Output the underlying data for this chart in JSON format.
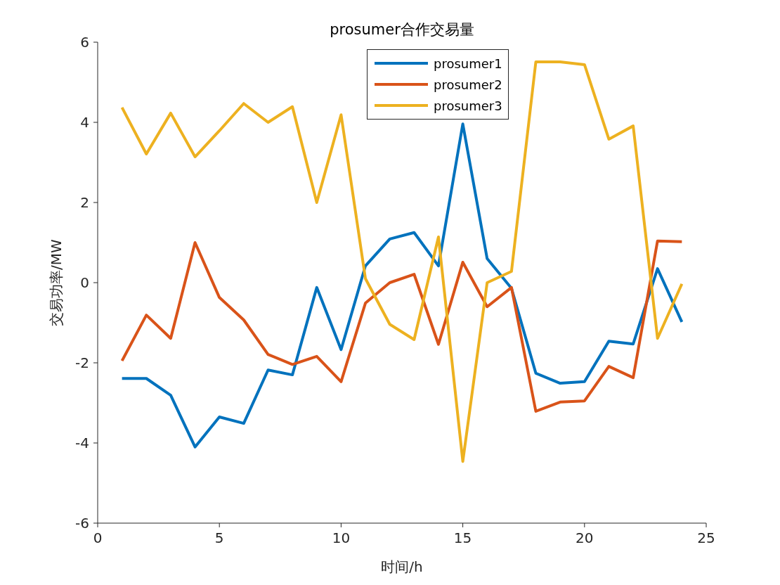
{
  "chart_data": {
    "type": "line",
    "title": "prosumer合作交易量",
    "xlabel": "时间/h",
    "ylabel": "交易功率/MW",
    "x": [
      1,
      2,
      3,
      4,
      5,
      6,
      7,
      8,
      9,
      10,
      11,
      12,
      13,
      14,
      15,
      16,
      17,
      18,
      19,
      20,
      21,
      22,
      23,
      24
    ],
    "series": [
      {
        "name": "prosumer1",
        "color": "#0072bd",
        "values": [
          -2.39,
          -2.39,
          -2.81,
          -4.1,
          -3.35,
          -3.51,
          -2.18,
          -2.3,
          -0.12,
          -1.67,
          0.42,
          1.09,
          1.25,
          0.42,
          3.96,
          0.6,
          -0.14,
          -2.26,
          -2.51,
          -2.47,
          -1.46,
          -1.53,
          0.35,
          -0.98
        ]
      },
      {
        "name": "prosumer2",
        "color": "#d95319",
        "values": [
          -1.95,
          -0.81,
          -1.39,
          1.0,
          -0.37,
          -0.93,
          -1.79,
          -2.04,
          -1.84,
          -2.47,
          -0.51,
          0,
          0.21,
          -1.54,
          0.51,
          -0.6,
          -0.12,
          -3.21,
          -2.98,
          -2.95,
          -2.09,
          -2.37,
          1.04,
          1.02
        ]
      },
      {
        "name": "prosumer3",
        "color": "#edb120",
        "values": [
          4.37,
          3.21,
          4.23,
          3.14,
          3.79,
          4.47,
          4.0,
          4.39,
          2.0,
          4.19,
          0.1,
          -1.04,
          -1.42,
          1.14,
          -4.46,
          0,
          0.28,
          5.51,
          5.51,
          5.44,
          3.58,
          3.91,
          -1.39,
          -0.03
        ]
      }
    ],
    "xlim": [
      0,
      25
    ],
    "xticks": [
      0,
      5,
      10,
      15,
      20,
      25
    ],
    "ylim": [
      -6,
      6
    ],
    "yticks": [
      -6,
      -4,
      -2,
      0,
      2,
      4,
      6
    ],
    "grid": false,
    "legend": "top",
    "marker": "none",
    "line_style": "solid"
  }
}
